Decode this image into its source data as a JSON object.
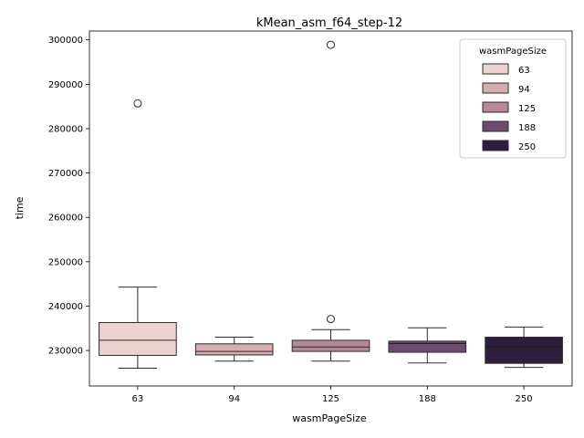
{
  "chart_data": {
    "type": "box",
    "title": "kMean_asm_f64_step-12",
    "xlabel": "wasmPageSize",
    "ylabel": "time",
    "ylim": [
      222000,
      302000
    ],
    "yticks": [
      230000,
      240000,
      250000,
      260000,
      270000,
      280000,
      290000,
      300000
    ],
    "categories": [
      "63",
      "94",
      "125",
      "188",
      "250"
    ],
    "legend": {
      "title": "wasmPageSize",
      "position": "top-right"
    },
    "grid": false,
    "series": [
      {
        "name": "63",
        "color": "#ecd3cf",
        "whisker_low": 226000,
        "q1": 228900,
        "median": 232300,
        "q3": 236300,
        "whisker_high": 244300,
        "outliers": [
          285700
        ]
      },
      {
        "name": "94",
        "color": "#d6aeb2",
        "whisker_low": 227600,
        "q1": 229000,
        "median": 229800,
        "q3": 231500,
        "whisker_high": 233000,
        "outliers": []
      },
      {
        "name": "125",
        "color": "#b7879a",
        "whisker_low": 227600,
        "q1": 229800,
        "median": 230800,
        "q3": 232300,
        "whisker_high": 234700,
        "outliers": [
          237100,
          298900
        ]
      },
      {
        "name": "188",
        "color": "#704a6d",
        "whisker_low": 227200,
        "q1": 229600,
        "median": 231600,
        "q3": 232100,
        "whisker_high": 235100,
        "outliers": []
      },
      {
        "name": "250",
        "color": "#2d1e3e",
        "whisker_low": 226200,
        "q1": 227100,
        "median": 230800,
        "q3": 233000,
        "whisker_high": 235300,
        "outliers": []
      }
    ]
  }
}
